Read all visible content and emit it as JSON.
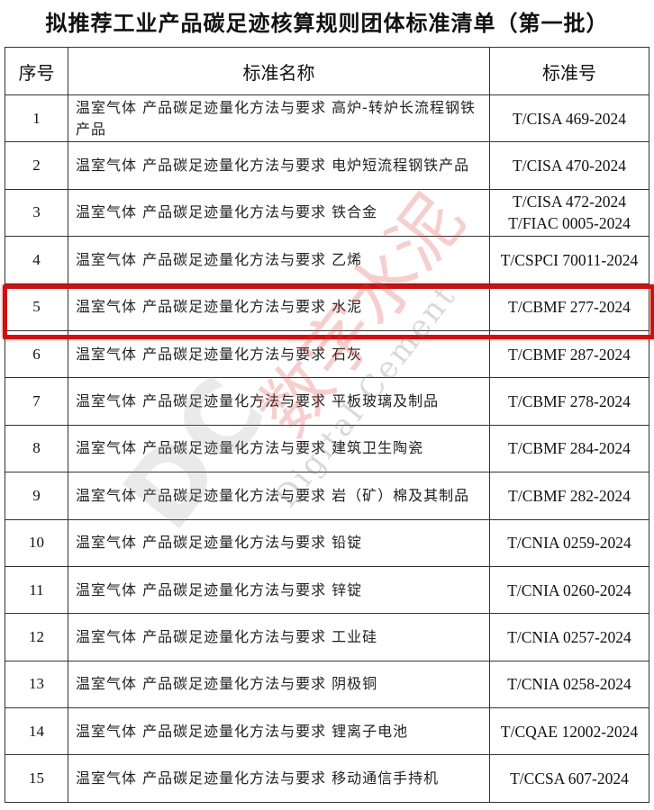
{
  "title": "拟推荐工业产品碳足迹核算规则团体标准清单（第一批）",
  "table": {
    "headers": [
      "序号",
      "标准名称",
      "标准号"
    ],
    "rows": [
      {
        "no": "1",
        "name": "温室气体 产品碳足迹量化方法与要求 高炉-转炉长流程钢铁产品",
        "code": "T/CISA 469-2024"
      },
      {
        "no": "2",
        "name": "温室气体 产品碳足迹量化方法与要求 电炉短流程钢铁产品",
        "code": "T/CISA 470-2024"
      },
      {
        "no": "3",
        "name": "温室气体 产品碳足迹量化方法与要求 铁合金",
        "code": "T/CISA 472-2024 T/FIAC 0005-2024"
      },
      {
        "no": "4",
        "name": "温室气体 产品碳足迹量化方法与要求 乙烯",
        "code": "T/CSPCI 70011-2024"
      },
      {
        "no": "5",
        "name": "温室气体 产品碳足迹量化方法与要求 水泥",
        "code": "T/CBMF 277-2024"
      },
      {
        "no": "6",
        "name": "温室气体 产品碳足迹量化方法与要求 石灰",
        "code": "T/CBMF 287-2024"
      },
      {
        "no": "7",
        "name": "温室气体 产品碳足迹量化方法与要求 平板玻璃及制品",
        "code": "T/CBMF 278-2024"
      },
      {
        "no": "8",
        "name": "温室气体 产品碳足迹量化方法与要求 建筑卫生陶瓷",
        "code": "T/CBMF 284-2024"
      },
      {
        "no": "9",
        "name": "温室气体 产品碳足迹量化方法与要求 岩（矿）棉及其制品",
        "code": "T/CBMF 282-2024"
      },
      {
        "no": "10",
        "name": "温室气体 产品碳足迹量化方法与要求 铅锭",
        "code": "T/CNIA 0259-2024"
      },
      {
        "no": "11",
        "name": "温室气体 产品碳足迹量化方法与要求 锌锭",
        "code": "T/CNIA 0260-2024"
      },
      {
        "no": "12",
        "name": "温室气体 产品碳足迹量化方法与要求 工业硅",
        "code": "T/CNIA 0257-2024"
      },
      {
        "no": "13",
        "name": "温室气体 产品碳足迹量化方法与要求 阴极铜",
        "code": "T/CNIA 0258-2024"
      },
      {
        "no": "14",
        "name": "温室气体 产品碳足迹量化方法与要求 锂离子电池",
        "code": "T/CQAE 12002-2024"
      },
      {
        "no": "15",
        "name": "温室气体 产品碳足迹量化方法与要求 移动通信手持机",
        "code": "T/CCSA 607-2024"
      }
    ],
    "highlighted_row": "5"
  },
  "watermark": {
    "cn": "数字水泥",
    "en": "Digital Cement",
    "logo": "DC"
  },
  "colors": {
    "highlight": "#d01010",
    "watermark_red": "#dc3c3c"
  }
}
